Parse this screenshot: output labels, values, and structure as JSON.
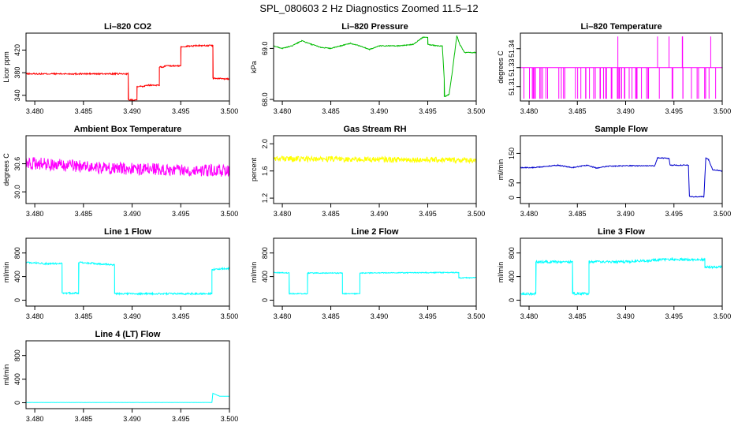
{
  "page_title": "SPL_080603  2 Hz Diagnostics Zoomed 11.5–12",
  "chart_data": [
    {
      "type": "line",
      "title": "Li–820 CO2",
      "ylabel": "Licor ppm",
      "color": "#ff0000",
      "xlim": [
        3.4791,
        3.5
      ],
      "ylim": [
        330,
        450
      ],
      "x_ticks": [
        "3.480",
        "3.485",
        "3.490",
        "3.495",
        "3.500"
      ],
      "y_ticks": [
        "340",
        "380",
        "420"
      ],
      "y_tick_values": [
        340,
        380,
        420
      ],
      "x": [
        3.4791,
        3.4896,
        3.4896,
        3.4905,
        3.4905,
        3.4913,
        3.4913,
        3.4928,
        3.4928,
        3.4933,
        3.4933,
        3.495,
        3.495,
        3.4966,
        3.4983,
        3.4983,
        3.5
      ],
      "y": [
        378,
        378,
        332,
        332,
        356,
        356,
        358,
        358,
        390,
        390,
        392,
        392,
        426,
        428,
        428,
        370,
        369
      ],
      "noise": 1.2
    },
    {
      "type": "line",
      "title": "Li–820 Pressure",
      "ylabel": "kPa",
      "color": "#00bb00",
      "xlim": [
        3.4791,
        3.5
      ],
      "ylim": [
        67.97,
        69.3
      ],
      "x_ticks": [
        "3.480",
        "3.485",
        "3.490",
        "3.495",
        "3.500"
      ],
      "y_ticks": [
        "68.0",
        "69.0"
      ],
      "y_tick_values": [
        68.0,
        69.0
      ],
      "x": [
        3.4791,
        3.48,
        3.481,
        3.482,
        3.483,
        3.484,
        3.485,
        3.486,
        3.487,
        3.488,
        3.489,
        3.49,
        3.492,
        3.4935,
        3.4945,
        3.495,
        3.495,
        3.496,
        3.4965,
        3.4967,
        3.4967,
        3.4972,
        3.4975,
        3.498,
        3.4983,
        3.4988,
        3.5
      ],
      "y": [
        69.05,
        69.0,
        69.05,
        69.15,
        69.08,
        69.02,
        69.0,
        69.05,
        69.1,
        69.05,
        68.98,
        69.05,
        69.05,
        69.08,
        69.22,
        69.22,
        69.08,
        69.05,
        69.05,
        68.4,
        68.05,
        68.1,
        68.5,
        69.25,
        69.08,
        68.92,
        68.92
      ],
      "noise": 0.008
    },
    {
      "type": "line",
      "title": "Li–820 Temperature",
      "ylabel": "degrees C",
      "color": "#ff00ff",
      "xlim": [
        3.4791,
        3.5
      ],
      "ylim": [
        51.297,
        51.358
      ],
      "x_ticks": [
        "3.480",
        "3.485",
        "3.490",
        "3.495",
        "3.500"
      ],
      "y_ticks": [
        "51.31",
        "51.33",
        "51.34"
      ],
      "y_tick_values": [
        51.31,
        51.327,
        51.344
      ],
      "x": [
        3.4791,
        3.5
      ],
      "y": [
        51.327,
        51.327
      ],
      "noise": 0
    },
    {
      "type": "line",
      "title": "Ambient Box Temperature",
      "ylabel": "degrees C",
      "color": "#ff00ff",
      "xlim": [
        3.4791,
        3.5
      ],
      "ylim": [
        29.75,
        31.2
      ],
      "x_ticks": [
        "3.480",
        "3.485",
        "3.490",
        "3.495",
        "3.500"
      ],
      "y_ticks": [
        "30.0",
        "30.6"
      ],
      "y_tick_values": [
        30.0,
        30.6
      ],
      "x": [
        3.4791,
        3.488,
        3.5
      ],
      "y": [
        30.62,
        30.5,
        30.45
      ],
      "noise": 0.13
    },
    {
      "type": "line",
      "title": "Gas Stream RH",
      "ylabel": "percent",
      "color": "#ffff00",
      "xlim": [
        3.4791,
        3.5
      ],
      "ylim": [
        1.12,
        2.12
      ],
      "x_ticks": [
        "3.480",
        "3.485",
        "3.490",
        "3.495",
        "3.500"
      ],
      "y_ticks": [
        "1.2",
        "1.6",
        "2.0"
      ],
      "y_tick_values": [
        1.2,
        1.6,
        2.0
      ],
      "x": [
        3.4791,
        3.5
      ],
      "y": [
        1.78,
        1.76
      ],
      "noise": 0.04
    },
    {
      "type": "line",
      "title": "Sample Flow",
      "ylabel": "ml/min",
      "color": "#0000cc",
      "xlim": [
        3.4791,
        3.5
      ],
      "ylim": [
        -20,
        210
      ],
      "x_ticks": [
        "3.480",
        "3.485",
        "3.490",
        "3.495",
        "3.500"
      ],
      "y_ticks": [
        "0",
        "50",
        "150"
      ],
      "y_tick_values": [
        0,
        50,
        150
      ],
      "x": [
        3.4791,
        3.4805,
        3.4815,
        3.483,
        3.4845,
        3.486,
        3.487,
        3.488,
        3.49,
        3.493,
        3.4933,
        3.4945,
        3.4946,
        3.4965,
        3.4966,
        3.4968,
        3.4981,
        3.4983,
        3.4986,
        3.499,
        3.5
      ],
      "y": [
        102,
        102,
        105,
        110,
        102,
        110,
        100,
        106,
        108,
        108,
        135,
        133,
        110,
        110,
        5,
        3,
        3,
        135,
        128,
        95,
        90
      ],
      "noise": 1.5
    },
    {
      "type": "line",
      "title": "Line 1 Flow",
      "ylabel": "ml/min",
      "color": "#00ffff",
      "xlim": [
        3.4791,
        3.5
      ],
      "ylim": [
        -100,
        1050
      ],
      "x_ticks": [
        "3.480",
        "3.485",
        "3.490",
        "3.495",
        "3.500"
      ],
      "y_ticks": [
        "0",
        "400",
        "800"
      ],
      "y_tick_values": [
        0,
        400,
        800
      ],
      "x": [
        3.4791,
        3.4805,
        3.4808,
        3.4828,
        3.4828,
        3.4845,
        3.4845,
        3.4882,
        3.4882,
        3.4982,
        3.4982,
        3.5
      ],
      "y": [
        640,
        630,
        620,
        620,
        120,
        120,
        640,
        600,
        110,
        110,
        520,
        540
      ],
      "noise": 14
    },
    {
      "type": "line",
      "title": "Line 2 Flow",
      "ylabel": "ml/min",
      "color": "#00ffff",
      "xlim": [
        3.4791,
        3.5
      ],
      "ylim": [
        -100,
        1050
      ],
      "x_ticks": [
        "3.480",
        "3.485",
        "3.490",
        "3.495",
        "3.500"
      ],
      "y_ticks": [
        "0",
        "400",
        "800"
      ],
      "y_tick_values": [
        0,
        400,
        800
      ],
      "x": [
        3.4791,
        3.4807,
        3.4807,
        3.4826,
        3.4826,
        3.4862,
        3.4862,
        3.488,
        3.488,
        3.4982,
        3.4982,
        3.5
      ],
      "y": [
        470,
        460,
        110,
        110,
        460,
        460,
        110,
        110,
        460,
        470,
        380,
        380
      ],
      "noise": 8
    },
    {
      "type": "line",
      "title": "Line 3 Flow",
      "ylabel": "ml/min",
      "color": "#00ffff",
      "xlim": [
        3.4791,
        3.5
      ],
      "ylim": [
        -100,
        1050
      ],
      "x_ticks": [
        "3.480",
        "3.485",
        "3.490",
        "3.495",
        "3.500"
      ],
      "y_ticks": [
        "0",
        "400",
        "800"
      ],
      "y_tick_values": [
        0,
        400,
        800
      ],
      "x": [
        3.4791,
        3.4807,
        3.4807,
        3.4845,
        3.4845,
        3.4862,
        3.4862,
        3.49,
        3.494,
        3.4982,
        3.4982,
        3.5
      ],
      "y": [
        110,
        110,
        650,
        650,
        110,
        110,
        650,
        650,
        690,
        690,
        560,
        560
      ],
      "noise": 20
    },
    {
      "type": "line",
      "title": "Line 4 (LT) Flow",
      "ylabel": "ml/min",
      "color": "#00ffff",
      "xlim": [
        3.4791,
        3.5
      ],
      "ylim": [
        -100,
        1050
      ],
      "x_ticks": [
        "3.480",
        "3.485",
        "3.490",
        "3.495",
        "3.500"
      ],
      "y_ticks": [
        "0",
        "400",
        "800"
      ],
      "y_tick_values": [
        0,
        400,
        800
      ],
      "x": [
        3.4791,
        3.4982,
        3.4983,
        3.499,
        3.5
      ],
      "y": [
        5,
        5,
        160,
        110,
        110
      ],
      "noise": 1
    }
  ]
}
